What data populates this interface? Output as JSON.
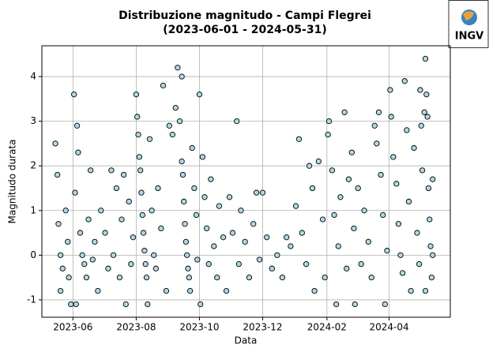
{
  "chart_data": {
    "type": "scatter",
    "title": "Distribuzione magnitudo - Campi Flegrei",
    "subtitle": "(2023-06-01 - 2024-05-31)",
    "xlabel": "Data",
    "ylabel": "Magnitudo durata",
    "color": "#add8e6",
    "edgecolor": "#000000",
    "grid": true,
    "xlim": [
      "2023-05-02",
      "2024-05-30"
    ],
    "xticks": [
      {
        "value": "2023-06-01",
        "label": "2023-06"
      },
      {
        "value": "2023-08-01",
        "label": "2023-08"
      },
      {
        "value": "2023-10-01",
        "label": "2023-10"
      },
      {
        "value": "2023-12-01",
        "label": "2023-12"
      },
      {
        "value": "2024-02-01",
        "label": "2024-02"
      },
      {
        "value": "2024-04-01",
        "label": "2024-04"
      }
    ],
    "ylim": [
      -1.39,
      4.69
    ],
    "yticks": [
      -1,
      0,
      1,
      2,
      3,
      4
    ],
    "x": [
      "2023-05-15",
      "2023-05-17",
      "2023-05-18",
      "2023-05-20",
      "2023-05-22",
      "2023-05-20",
      "2023-05-25",
      "2023-05-27",
      "2023-05-28",
      "2023-05-30",
      "2023-06-02",
      "2023-06-05",
      "2023-06-06",
      "2023-06-03",
      "2023-06-08",
      "2023-06-10",
      "2023-06-12",
      "2023-06-14",
      "2023-06-04",
      "2023-06-16",
      "2023-06-18",
      "2023-06-20",
      "2023-06-22",
      "2023-06-25",
      "2023-06-28",
      "2023-07-02",
      "2023-07-05",
      "2023-07-08",
      "2023-07-10",
      "2023-07-13",
      "2023-07-16",
      "2023-07-18",
      "2023-07-20",
      "2023-07-22",
      "2023-07-25",
      "2023-07-27",
      "2023-07-29",
      "2023-08-01",
      "2023-08-02",
      "2023-08-03",
      "2023-08-04",
      "2023-08-05",
      "2023-08-06",
      "2023-08-07",
      "2023-08-08",
      "2023-08-09",
      "2023-08-10",
      "2023-08-11",
      "2023-08-12",
      "2023-08-14",
      "2023-08-16",
      "2023-08-18",
      "2023-08-20",
      "2023-08-22",
      "2023-08-25",
      "2023-08-27",
      "2023-08-30",
      "2023-09-02",
      "2023-09-05",
      "2023-09-08",
      "2023-09-10",
      "2023-09-12",
      "2023-09-14",
      "2023-09-15",
      "2023-09-16",
      "2023-09-17",
      "2023-09-18",
      "2023-09-19",
      "2023-09-20",
      "2023-09-21",
      "2023-09-22",
      "2023-09-14",
      "2023-09-24",
      "2023-09-26",
      "2023-09-28",
      "2023-09-29",
      "2023-10-01",
      "2023-10-02",
      "2023-10-04",
      "2023-10-06",
      "2023-10-08",
      "2023-10-10",
      "2023-10-12",
      "2023-10-15",
      "2023-10-18",
      "2023-10-20",
      "2023-10-24",
      "2023-10-27",
      "2023-10-30",
      "2023-11-02",
      "2023-11-06",
      "2023-11-08",
      "2023-11-10",
      "2023-11-14",
      "2023-11-18",
      "2023-11-22",
      "2023-11-25",
      "2023-11-28",
      "2023-12-01",
      "2023-12-05",
      "2023-12-10",
      "2023-12-15",
      "2023-12-20",
      "2023-12-24",
      "2023-12-28",
      "2024-01-02",
      "2024-01-05",
      "2024-01-08",
      "2024-01-12",
      "2024-01-15",
      "2024-01-18",
      "2024-01-20",
      "2024-01-24",
      "2024-01-28",
      "2024-01-30",
      "2024-02-02",
      "2024-02-03",
      "2024-02-06",
      "2024-02-08",
      "2024-02-10",
      "2024-02-12",
      "2024-02-14",
      "2024-02-18",
      "2024-02-20",
      "2024-02-22",
      "2024-02-25",
      "2024-02-27",
      "2024-02-28",
      "2024-03-02",
      "2024-03-05",
      "2024-03-08",
      "2024-03-12",
      "2024-03-15",
      "2024-03-18",
      "2024-03-20",
      "2024-03-22",
      "2024-03-24",
      "2024-03-26",
      "2024-03-28",
      "2024-03-30",
      "2024-04-02",
      "2024-04-03",
      "2024-04-05",
      "2024-04-08",
      "2024-04-10",
      "2024-04-12",
      "2024-04-14",
      "2024-04-16",
      "2024-04-18",
      "2024-04-20",
      "2024-04-22",
      "2024-04-25",
      "2024-04-28",
      "2024-04-30",
      "2024-05-01",
      "2024-05-02",
      "2024-05-03",
      "2024-05-05",
      "2024-05-06",
      "2024-05-07",
      "2024-05-08",
      "2024-05-09",
      "2024-05-10",
      "2024-05-11",
      "2024-05-12",
      "2024-05-06",
      "2024-05-13",
      "2024-05-13"
    ],
    "values": [
      2.5,
      1.8,
      0.7,
      0.0,
      -0.3,
      -0.8,
      1.0,
      0.3,
      -0.5,
      -1.1,
      3.6,
      2.9,
      2.3,
      1.4,
      0.5,
      0.0,
      -0.2,
      -0.5,
      -1.1,
      0.8,
      1.9,
      -0.1,
      0.3,
      -0.8,
      1.0,
      0.5,
      -0.3,
      1.9,
      0.0,
      1.5,
      -0.5,
      0.8,
      1.8,
      -1.1,
      1.2,
      -0.2,
      0.4,
      3.6,
      3.1,
      2.7,
      2.2,
      1.9,
      1.4,
      0.9,
      0.5,
      0.1,
      -0.2,
      -0.5,
      -1.1,
      2.6,
      1.0,
      0.0,
      -0.3,
      1.5,
      0.6,
      3.8,
      -0.8,
      2.9,
      2.7,
      3.3,
      4.2,
      3.0,
      2.1,
      1.8,
      1.2,
      0.7,
      0.3,
      0.0,
      -0.3,
      -0.5,
      -0.8,
      4.0,
      2.4,
      1.5,
      0.9,
      -0.1,
      3.6,
      -1.1,
      2.2,
      1.3,
      0.6,
      -0.2,
      1.7,
      0.2,
      -0.5,
      1.1,
      0.4,
      -0.8,
      1.3,
      0.5,
      3.0,
      -0.2,
      1.0,
      0.3,
      -0.5,
      0.7,
      1.4,
      -0.1,
      1.4,
      0.4,
      -0.3,
      0.0,
      -0.5,
      0.4,
      0.2,
      1.1,
      2.6,
      0.5,
      -0.2,
      2.0,
      1.5,
      -0.8,
      2.1,
      0.8,
      -0.5,
      2.7,
      3.0,
      1.9,
      0.9,
      -1.1,
      0.2,
      1.3,
      3.2,
      -0.3,
      1.7,
      2.3,
      0.6,
      -1.1,
      1.5,
      -0.2,
      1.0,
      0.3,
      -0.5,
      2.9,
      2.5,
      3.2,
      1.8,
      0.9,
      -1.1,
      0.1,
      3.7,
      3.1,
      2.2,
      1.6,
      0.7,
      0.0,
      -0.4,
      3.9,
      2.8,
      1.2,
      -0.8,
      2.4,
      0.5,
      -0.2,
      3.7,
      2.9,
      1.9,
      3.2,
      4.4,
      3.6,
      3.1,
      1.5,
      0.8,
      0.2,
      -0.5,
      -0.8,
      1.7,
      0.0
    ]
  },
  "logo": {
    "text": "INGV"
  }
}
